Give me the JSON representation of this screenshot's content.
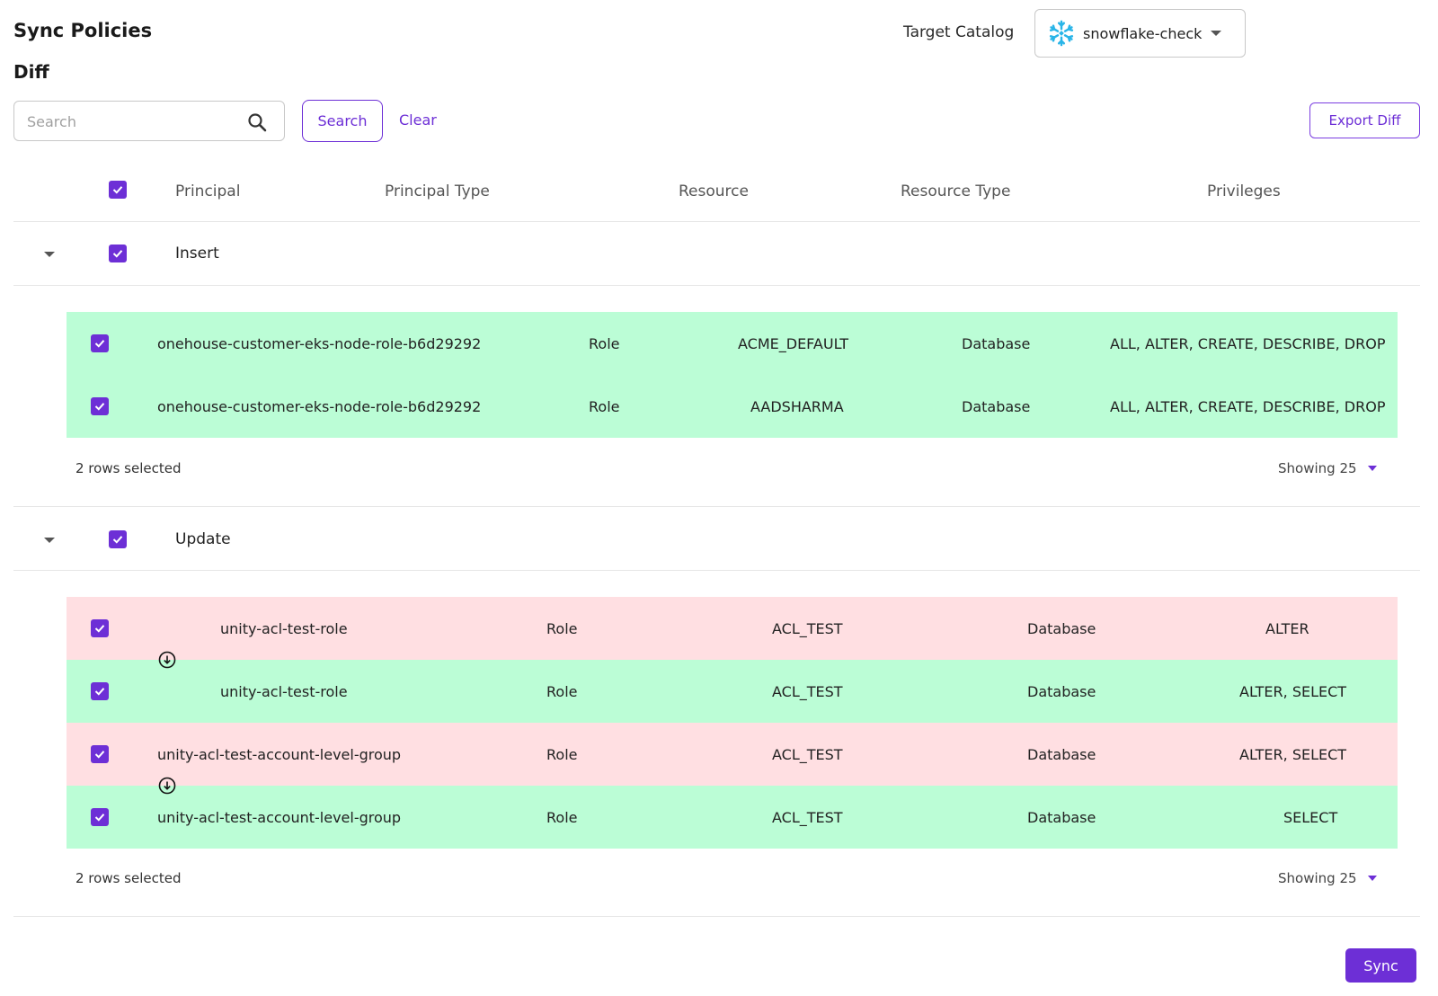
{
  "header": {
    "title": "Sync Policies",
    "subtitle": "Diff",
    "target_catalog_label": "Target Catalog",
    "target_catalog_value": "snowflake-check",
    "catalog_icon": "snowflake-icon"
  },
  "toolbar": {
    "search_placeholder": "Search",
    "search_value": "",
    "search_button": "Search",
    "clear_button": "Clear",
    "export_button": "Export Diff"
  },
  "table": {
    "columns": [
      "Principal",
      "Principal Type",
      "Resource",
      "Resource Type",
      "Privileges"
    ],
    "header_checked": true
  },
  "groups": [
    {
      "label": "Insert",
      "checked": true,
      "expanded": true,
      "rows": [
        {
          "status": "added",
          "checked": true,
          "principal": "onehouse-customer-eks-node-role-b6d29292",
          "principal_type": "Role",
          "resource": "ACME_DEFAULT",
          "resource_type": "Database",
          "privileges": "ALL, ALTER, CREATE, DESCRIBE, DROP"
        },
        {
          "status": "added",
          "checked": true,
          "principal": "onehouse-customer-eks-node-role-b6d29292",
          "principal_type": "Role",
          "resource": "AADSHARMA",
          "resource_type": "Database",
          "privileges": "ALL, ALTER, CREATE, DESCRIBE, DROP"
        }
      ],
      "footer": {
        "selected_text": "2 rows selected",
        "showing_text": "Showing 25"
      }
    },
    {
      "label": "Update",
      "checked": true,
      "expanded": true,
      "rows": [
        {
          "status": "removed",
          "checked": true,
          "principal": "unity-acl-test-role",
          "principal_type": "Role",
          "resource": "ACL_TEST",
          "resource_type": "Database",
          "privileges": "ALTER"
        },
        {
          "status": "added",
          "checked": true,
          "principal": "unity-acl-test-role",
          "principal_type": "Role",
          "resource": "ACL_TEST",
          "resource_type": "Database",
          "privileges": "ALTER, SELECT"
        },
        {
          "status": "removed",
          "checked": true,
          "principal": "unity-acl-test-account-level-group",
          "principal_type": "Role",
          "resource": "ACL_TEST",
          "resource_type": "Database",
          "privileges": "ALTER, SELECT"
        },
        {
          "status": "added",
          "checked": true,
          "principal": "unity-acl-test-account-level-group",
          "principal_type": "Role",
          "resource": "ACL_TEST",
          "resource_type": "Database",
          "privileges": "SELECT"
        }
      ],
      "footer": {
        "selected_text": "2 rows selected",
        "showing_text": "Showing 25"
      }
    }
  ],
  "actions": {
    "sync_button": "Sync"
  },
  "colors": {
    "accent": "#6d2fd6",
    "added_row": "#bbfdd6",
    "removed_row": "#ffdfe2",
    "snowflake": "#29b5e8"
  }
}
